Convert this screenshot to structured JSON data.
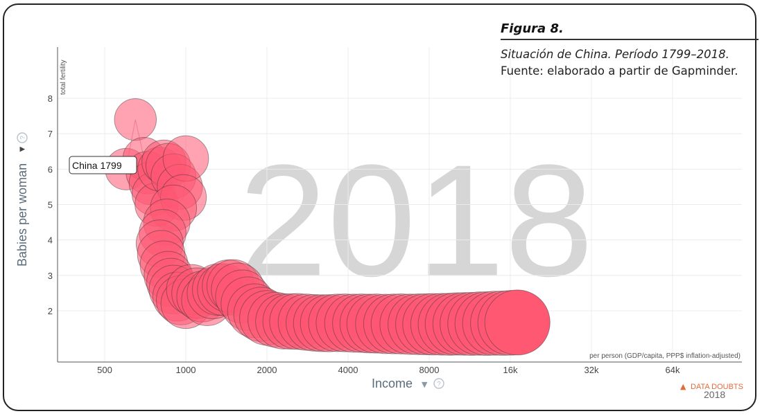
{
  "caption": {
    "figure_title": "Figura 8.",
    "subtitle": "Situación de China. Período 1799–2018.",
    "source": "Fuente: elaborado a partir de Gapminder."
  },
  "chart_data": {
    "type": "scatter",
    "title": "",
    "xlabel": "Income",
    "xlabel_detail": "per person (GDP/capita, PPP$ inflation-adjusted)",
    "ylabel": "Babies per woman",
    "ylabel_detail": "total fertility",
    "xscale": "log",
    "x_ticks": [
      "500",
      "1000",
      "2000",
      "4000",
      "8000",
      "16k",
      "32k",
      "64k"
    ],
    "x_tick_values": [
      500,
      1000,
      2000,
      4000,
      8000,
      16000,
      32000,
      64000
    ],
    "y_ticks": [
      "2",
      "3",
      "4",
      "5",
      "6",
      "7",
      "8"
    ],
    "y_tick_values": [
      2,
      3,
      4,
      5,
      6,
      7,
      8
    ],
    "xlim": [
      300,
      100000
    ],
    "ylim": [
      1.0,
      8.8
    ],
    "grid": true,
    "background_year": "2018",
    "tooltip": "China 1799",
    "data_doubts_label": "DATA DOUBTS",
    "data_doubts_year": "2018",
    "bubble_color": "#ff5872",
    "series": [
      {
        "name": "China",
        "x": [
          600,
          650,
          700,
          720,
          740,
          760,
          780,
          800,
          830,
          860,
          900,
          950,
          1000,
          980,
          900,
          850,
          820,
          800,
          810,
          830,
          860,
          880,
          900,
          930,
          960,
          1000,
          1050,
          1100,
          1150,
          1200,
          1260,
          1320,
          1380,
          1440,
          1500,
          1560,
          1620,
          1700,
          1800,
          1900,
          2000,
          2150,
          2300,
          2450,
          2600,
          2800,
          3000,
          3200,
          3400,
          3650,
          3900,
          4200,
          4500,
          4800,
          5100,
          5500,
          5900,
          6300,
          6800,
          7300,
          7800,
          8300,
          8900,
          9500,
          10100,
          10800,
          11500,
          12300,
          13100,
          14000,
          15000,
          16000,
          17000
        ],
        "y": [
          6.0,
          7.4,
          6.3,
          5.9,
          5.6,
          5.3,
          5.0,
          6.0,
          6.2,
          6.1,
          5.8,
          5.5,
          6.3,
          5.2,
          4.9,
          4.5,
          4.2,
          3.9,
          3.6,
          3.3,
          3.0,
          2.8,
          2.6,
          2.4,
          2.3,
          2.2,
          2.6,
          2.5,
          2.4,
          2.3,
          2.5,
          2.6,
          2.6,
          2.7,
          2.7,
          2.6,
          2.4,
          2.2,
          2.0,
          1.9,
          1.8,
          1.75,
          1.7,
          1.7,
          1.7,
          1.68,
          1.66,
          1.65,
          1.65,
          1.66,
          1.66,
          1.65,
          1.65,
          1.64,
          1.64,
          1.63,
          1.63,
          1.63,
          1.62,
          1.62,
          1.62,
          1.62,
          1.62,
          1.62,
          1.63,
          1.63,
          1.63,
          1.64,
          1.64,
          1.65,
          1.65,
          1.66,
          1.67
        ]
      }
    ]
  }
}
